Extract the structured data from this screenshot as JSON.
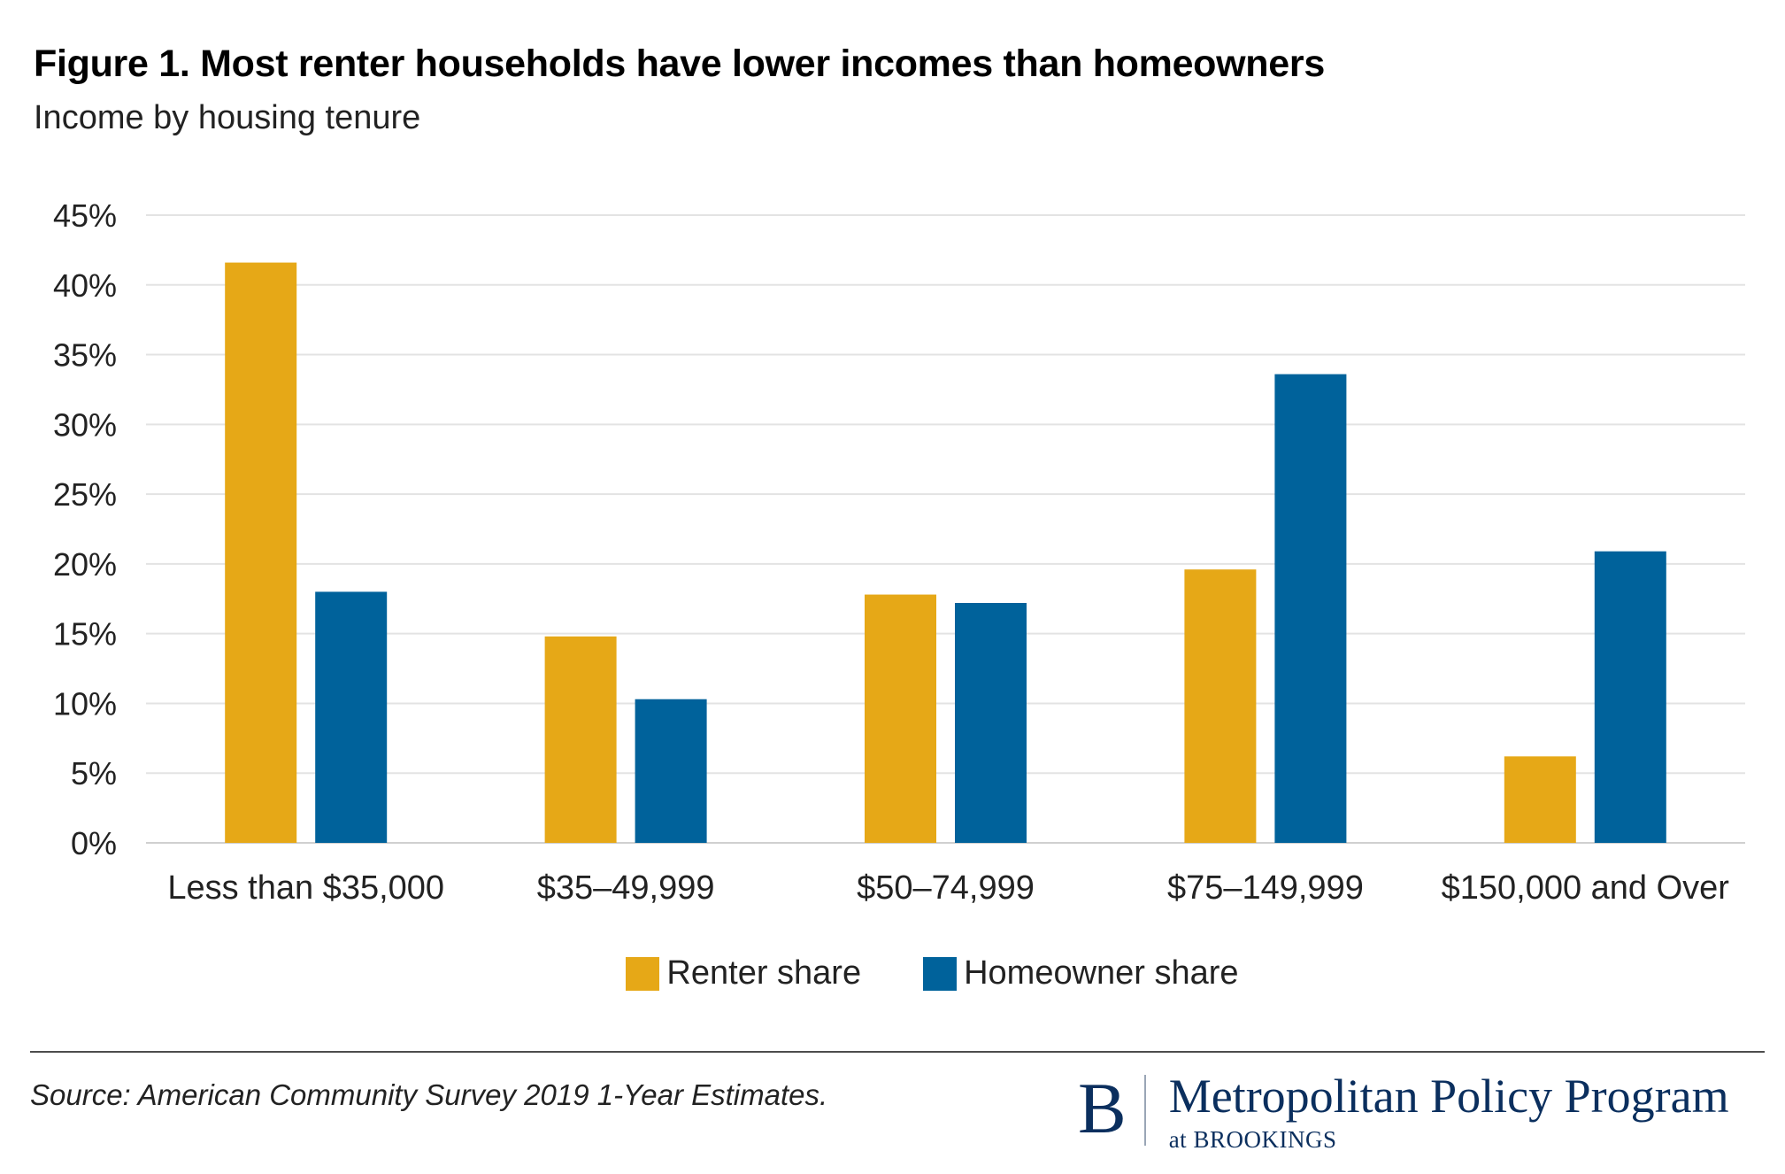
{
  "figure": {
    "title": "Figure 1. Most renter households have lower incomes than homeowners",
    "subtitle": "Income by housing tenure"
  },
  "chart_data": {
    "type": "bar",
    "title": "Figure 1. Most renter households have lower incomes than homeowners",
    "subtitle": "Income by housing tenure",
    "categories": [
      "Less than $35,000",
      "$35–49,999",
      "$50–74,999",
      "$75–149,999",
      "$150,000 and Over"
    ],
    "series": [
      {
        "name": "Renter share",
        "color": "#E6A817",
        "values": [
          41.6,
          14.8,
          17.8,
          19.6,
          6.2
        ]
      },
      {
        "name": "Homeowner share",
        "color": "#00629B",
        "values": [
          18.0,
          10.3,
          17.2,
          33.6,
          20.9
        ]
      }
    ],
    "y_ticks": [
      "0%",
      "5%",
      "10%",
      "15%",
      "20%",
      "25%",
      "30%",
      "35%",
      "40%",
      "45%"
    ],
    "ylim": [
      0,
      45
    ],
    "grid": true,
    "legend_position": "bottom-center",
    "xlabel": "",
    "ylabel": ""
  },
  "legend": {
    "renter_label": "Renter share",
    "homeowner_label": "Homeowner share"
  },
  "footer": {
    "source": "Source: American Community Survey 2019 1-Year Estimates."
  },
  "logo": {
    "letter": "B",
    "name": "Metropolitan Policy Program",
    "sub": "at BROOKINGS"
  }
}
